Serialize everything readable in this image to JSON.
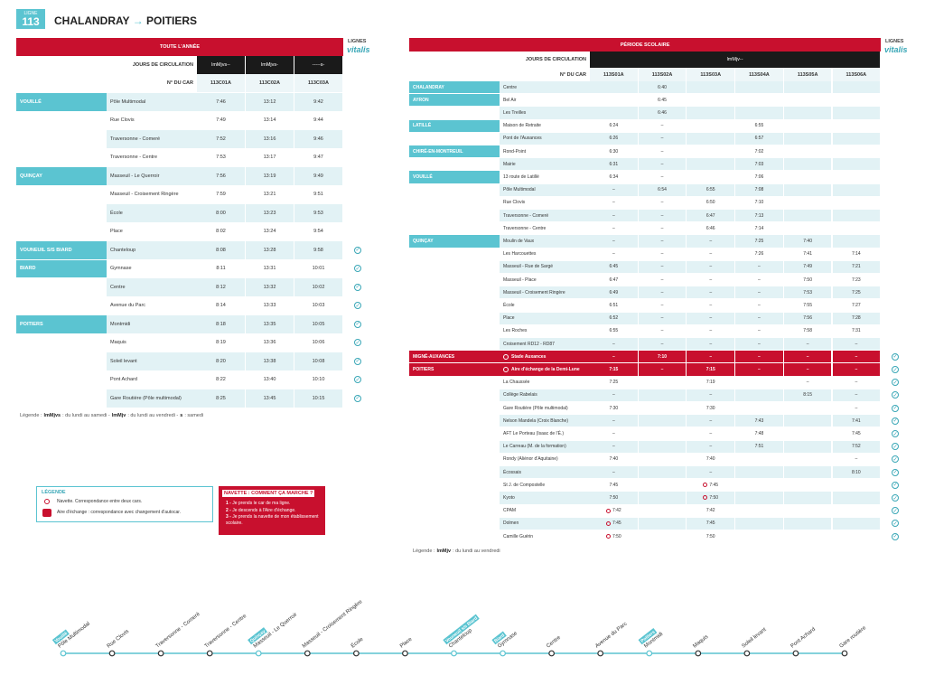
{
  "header": {
    "ligne_label": "LIGNE",
    "ligne": "113",
    "from": "CHALANDRAY",
    "to": "POITIERS"
  },
  "brand": {
    "lignes": "LIGNES",
    "logo": "vitalis"
  },
  "tables": [
    {
      "title": "TOUTE L'ANNÉE",
      "days_label": "JOURS DE CIRCULATION",
      "days": [
        "lmMjvs--",
        "lmMjvs-",
        "-----s-"
      ],
      "car_label": "N° DU CAR",
      "cars": [
        "113C01A",
        "113C02A",
        "113C03A"
      ],
      "groups": [
        {
          "commune": "VOUILLÉ",
          "rows": [
            {
              "stop": "Pôle Multimodal",
              "times": [
                "7:46",
                "13:12",
                "9:42"
              ]
            },
            {
              "stop": "Rue Clovis",
              "times": [
                "7:49",
                "13:14",
                "9:44"
              ]
            },
            {
              "stop": "Traversonne - Comeré",
              "times": [
                "7:52",
                "13:16",
                "9:46"
              ]
            },
            {
              "stop": "Traversonne - Centre",
              "times": [
                "7:53",
                "13:17",
                "9:47"
              ]
            }
          ]
        },
        {
          "commune": "QUINÇAY",
          "rows": [
            {
              "stop": "Masseuil - Le Querroir",
              "times": [
                "7:56",
                "13:19",
                "9:49"
              ]
            },
            {
              "stop": "Masseuil - Croisement Ringère",
              "times": [
                "7:59",
                "13:21",
                "9:51"
              ]
            },
            {
              "stop": "École",
              "times": [
                "8:00",
                "13:23",
                "9:53"
              ]
            },
            {
              "stop": "Place",
              "times": [
                "8:02",
                "13:24",
                "9:54"
              ]
            }
          ]
        },
        {
          "commune": "VOUNEUIL S/S BIARD",
          "rows": [
            {
              "stop": "Chanteloup",
              "times": [
                "8:08",
                "13:28",
                "9:58"
              ],
              "check": true
            }
          ]
        },
        {
          "commune": "BIARD",
          "rows": [
            {
              "stop": "Gymnase",
              "times": [
                "8:11",
                "13:31",
                "10:01"
              ],
              "check": true
            },
            {
              "stop": "Centre",
              "times": [
                "8:12",
                "13:32",
                "10:02"
              ],
              "check": true
            },
            {
              "stop": "Avenue du Parc",
              "times": [
                "8:14",
                "13:33",
                "10:03"
              ],
              "check": true
            }
          ]
        },
        {
          "commune": "POITIERS",
          "rows": [
            {
              "stop": "Montmidi",
              "times": [
                "8:18",
                "13:35",
                "10:05"
              ],
              "check": true
            },
            {
              "stop": "Maquis",
              "times": [
                "8:19",
                "13:36",
                "10:06"
              ],
              "check": true
            },
            {
              "stop": "Soleil levant",
              "times": [
                "8:20",
                "13:38",
                "10:08"
              ],
              "check": true
            },
            {
              "stop": "Pont Achard",
              "times": [
                "8:22",
                "13:40",
                "10:10"
              ],
              "check": true
            },
            {
              "stop": "Gare Routière (Pôle multimodal)",
              "times": [
                "8:25",
                "13:45",
                "10:15"
              ],
              "check": true
            }
          ]
        }
      ],
      "legend_label": "Légende :",
      "legend": [
        {
          "key": "lmMjvs",
          "text": ": du lundi au samedi -"
        },
        {
          "key": "lmMjv",
          "text": ": du lundi au vendredi -"
        },
        {
          "key": "s",
          "text": ": samedi"
        }
      ]
    },
    {
      "title": "PÉRIODE SCOLAIRE",
      "days_label": "JOURS DE CIRCULATION",
      "days": [
        "lmMjv--"
      ],
      "car_label": "N° DU CAR",
      "cars": [
        "113S01A",
        "113S02A",
        "113S03A",
        "113S04A",
        "113S05A",
        "113S06A"
      ],
      "groups": [
        {
          "commune": "CHALANDRAY",
          "rows": [
            {
              "stop": "Centre",
              "times": [
                null,
                "6:40",
                null,
                null,
                null,
                null
              ]
            }
          ]
        },
        {
          "commune": "AYRON",
          "rows": [
            {
              "stop": "Bel Air",
              "times": [
                null,
                "6:45",
                null,
                null,
                null,
                null
              ]
            },
            {
              "stop": "Les Treilles",
              "times": [
                null,
                "6:46",
                null,
                null,
                null,
                null
              ]
            }
          ]
        },
        {
          "commune": "LATILLÉ",
          "rows": [
            {
              "stop": "Maison de Retraite",
              "times": [
                "6:24",
                "–",
                null,
                "6:55",
                null,
                null
              ]
            },
            {
              "stop": "Pont de l'Auxances",
              "times": [
                "6:26",
                "–",
                null,
                "6:57",
                null,
                null
              ]
            }
          ]
        },
        {
          "commune": "CHIRÉ-EN-MONTREUIL",
          "rows": [
            {
              "stop": "Rond-Point",
              "times": [
                "6:30",
                "–",
                null,
                "7:02",
                null,
                null
              ]
            },
            {
              "stop": "Mairie",
              "times": [
                "6:31",
                "–",
                null,
                "7:03",
                null,
                null
              ]
            }
          ]
        },
        {
          "commune": "VOUILLÉ",
          "rows": [
            {
              "stop": "13 route de Latillé",
              "times": [
                "6:34",
                "–",
                null,
                "7:06",
                null,
                null
              ]
            },
            {
              "stop": "Pôle Multimodal",
              "times": [
                "–",
                "6:54",
                "6:55",
                "7:08",
                null,
                null
              ]
            },
            {
              "stop": "Rue Clovis",
              "times": [
                "–",
                "–",
                "6:50",
                "7:10",
                null,
                null
              ]
            },
            {
              "stop": "Traversonne - Comeré",
              "times": [
                "–",
                "–",
                "6:47",
                "7:13",
                null,
                null
              ]
            },
            {
              "stop": "Traversonne - Centre",
              "times": [
                "–",
                "–",
                "6:46",
                "7:14",
                null,
                null
              ]
            }
          ]
        },
        {
          "commune": "QUINÇAY",
          "rows": [
            {
              "stop": "Moulin de Vaux",
              "times": [
                "–",
                "–",
                "–",
                "7:25",
                "7:40",
                null
              ]
            },
            {
              "stop": "Les Harcouettes",
              "times": [
                "–",
                "–",
                "–",
                "7:26",
                "7:41",
                "7:14"
              ]
            },
            {
              "stop": "Masseuil - Rue de Sargé",
              "times": [
                "6:45",
                "–",
                "–",
                "–",
                "7:49",
                "7:21"
              ]
            },
            {
              "stop": "Masseuil - Place",
              "times": [
                "6:47",
                "–",
                "–",
                "–",
                "7:50",
                "7:23"
              ]
            },
            {
              "stop": "Masseuil - Croisement Ringère",
              "times": [
                "6:49",
                "–",
                "–",
                "–",
                "7:53",
                "7:25"
              ]
            },
            {
              "stop": "École",
              "times": [
                "6:51",
                "–",
                "–",
                "–",
                "7:55",
                "7:27"
              ]
            },
            {
              "stop": "Place",
              "times": [
                "6:52",
                "–",
                "–",
                "–",
                "7:56",
                "7:28"
              ]
            },
            {
              "stop": "Les Roches",
              "times": [
                "6:55",
                "–",
                "–",
                "–",
                "7:58",
                "7:31"
              ]
            },
            {
              "stop": "Croisement RD12 - RD87",
              "times": [
                "–",
                "–",
                "–",
                "–",
                "–",
                "–"
              ]
            }
          ]
        },
        {
          "commune": "MIGNÉ-AUXANCES",
          "rows": [
            {
              "stop": "Stade Auxances",
              "times": [
                "–",
                "7:10",
                "–",
                "–",
                "–",
                "–"
              ],
              "echange": true,
              "check": true
            }
          ]
        },
        {
          "commune": "POITIERS",
          "rows": [
            {
              "stop": "Aire d'échange de la Demi-Lune",
              "times": [
                "7:15",
                "–",
                "7:15",
                "–",
                "–",
                "–"
              ],
              "echange": true,
              "check": true
            },
            {
              "stop": "La Chaussée",
              "times": [
                "7:25",
                null,
                "7:19",
                null,
                "–",
                "–"
              ],
              "check": true
            },
            {
              "stop": "Collège Rabelais",
              "times": [
                "–",
                null,
                "–",
                null,
                "8:15",
                "–"
              ],
              "check": true
            },
            {
              "stop": "Gare Routière (Pôle multimodal)",
              "times": [
                "7:30",
                null,
                "7:30",
                null,
                null,
                "–"
              ],
              "check": true
            },
            {
              "stop": "Nelson Mandela (Croix Blanche)",
              "times": [
                "–",
                null,
                "–",
                "7:43",
                null,
                "7:41"
              ],
              "check": true
            },
            {
              "stop": "AFT Le Porteau (Isaac de l'É.)",
              "times": [
                "–",
                null,
                "–",
                "7:48",
                null,
                "7:45"
              ],
              "check": true
            },
            {
              "stop": "Le Carreau (M. de la formation)",
              "times": [
                "–",
                null,
                "–",
                "7:51",
                null,
                "7:52"
              ],
              "check": true
            },
            {
              "stop": "Rondy (Aliénor d'Aquitaine)",
              "times": [
                "7:40",
                null,
                "7:40",
                null,
                null,
                "–"
              ],
              "check": true
            },
            {
              "stop": "Écossais",
              "times": [
                "–",
                null,
                "–",
                null,
                null,
                "8:10"
              ],
              "check": true
            },
            {
              "stop": "St J. de Compostelle",
              "times": [
                "7:45",
                null,
                "7:45",
                null,
                null,
                null
              ],
              "navette": [
                2
              ],
              "check": true
            },
            {
              "stop": "Kyoto",
              "times": [
                "7:50",
                null,
                "7:50",
                null,
                null,
                null
              ],
              "navette": [
                2
              ],
              "check": true
            },
            {
              "stop": "CPAM",
              "times": [
                "7:42",
                null,
                "7:42",
                null,
                null,
                null
              ],
              "navette": [
                0
              ],
              "check": true
            },
            {
              "stop": "Dolmen",
              "times": [
                "7:45",
                null,
                "7:45",
                null,
                null,
                null
              ],
              "navette": [
                0
              ],
              "check": true
            },
            {
              "stop": "Camille Guérin",
              "times": [
                "7:50",
                null,
                "7:50",
                null,
                null,
                null
              ],
              "navette": [
                0
              ],
              "check": true
            }
          ]
        }
      ],
      "legend_label": "Légende :",
      "legend": [
        {
          "key": "lmMjv",
          "text": ": du lundi au vendredi"
        }
      ]
    }
  ],
  "legend_box": {
    "title": "LÉGENDE",
    "navette": "Navette. Correspondance entre deux cars.",
    "echange": "Aire d'échange : correspondance avec changement d'autocar."
  },
  "navette_box": {
    "title": "NAVETTE : COMMENT ÇA MARCHE ?",
    "steps": [
      {
        "n": "1 -",
        "text": "Je prends le car de ma ligne."
      },
      {
        "n": "2 -",
        "text": "Je descends à l'Aire d'échange."
      },
      {
        "n": "3 -",
        "text": "Je prends la navette de mon établissement scolaire."
      }
    ]
  },
  "line": {
    "stops": [
      {
        "name": "Pôle Multimodal",
        "commune": "Vouillé"
      },
      {
        "name": "Rue Clovis"
      },
      {
        "name": "Traversonne - Comeré"
      },
      {
        "name": "Traversonne - Centre"
      },
      {
        "name": "Masseuil - Le Querroir",
        "commune": "Quinçay"
      },
      {
        "name": "Masseuil - Croisement Ringère"
      },
      {
        "name": "École"
      },
      {
        "name": "Place"
      },
      {
        "name": "Chanteloup",
        "commune": "Vouneuil s/s Biard"
      },
      {
        "name": "Gymnase",
        "commune": "Biard"
      },
      {
        "name": "Centre"
      },
      {
        "name": "Avenue du Parc"
      },
      {
        "name": "Montmidi",
        "commune": "Poitiers"
      },
      {
        "name": "Maquis"
      },
      {
        "name": "Soleil levant"
      },
      {
        "name": "Pont Achard"
      },
      {
        "name": "Gare routière"
      }
    ]
  }
}
